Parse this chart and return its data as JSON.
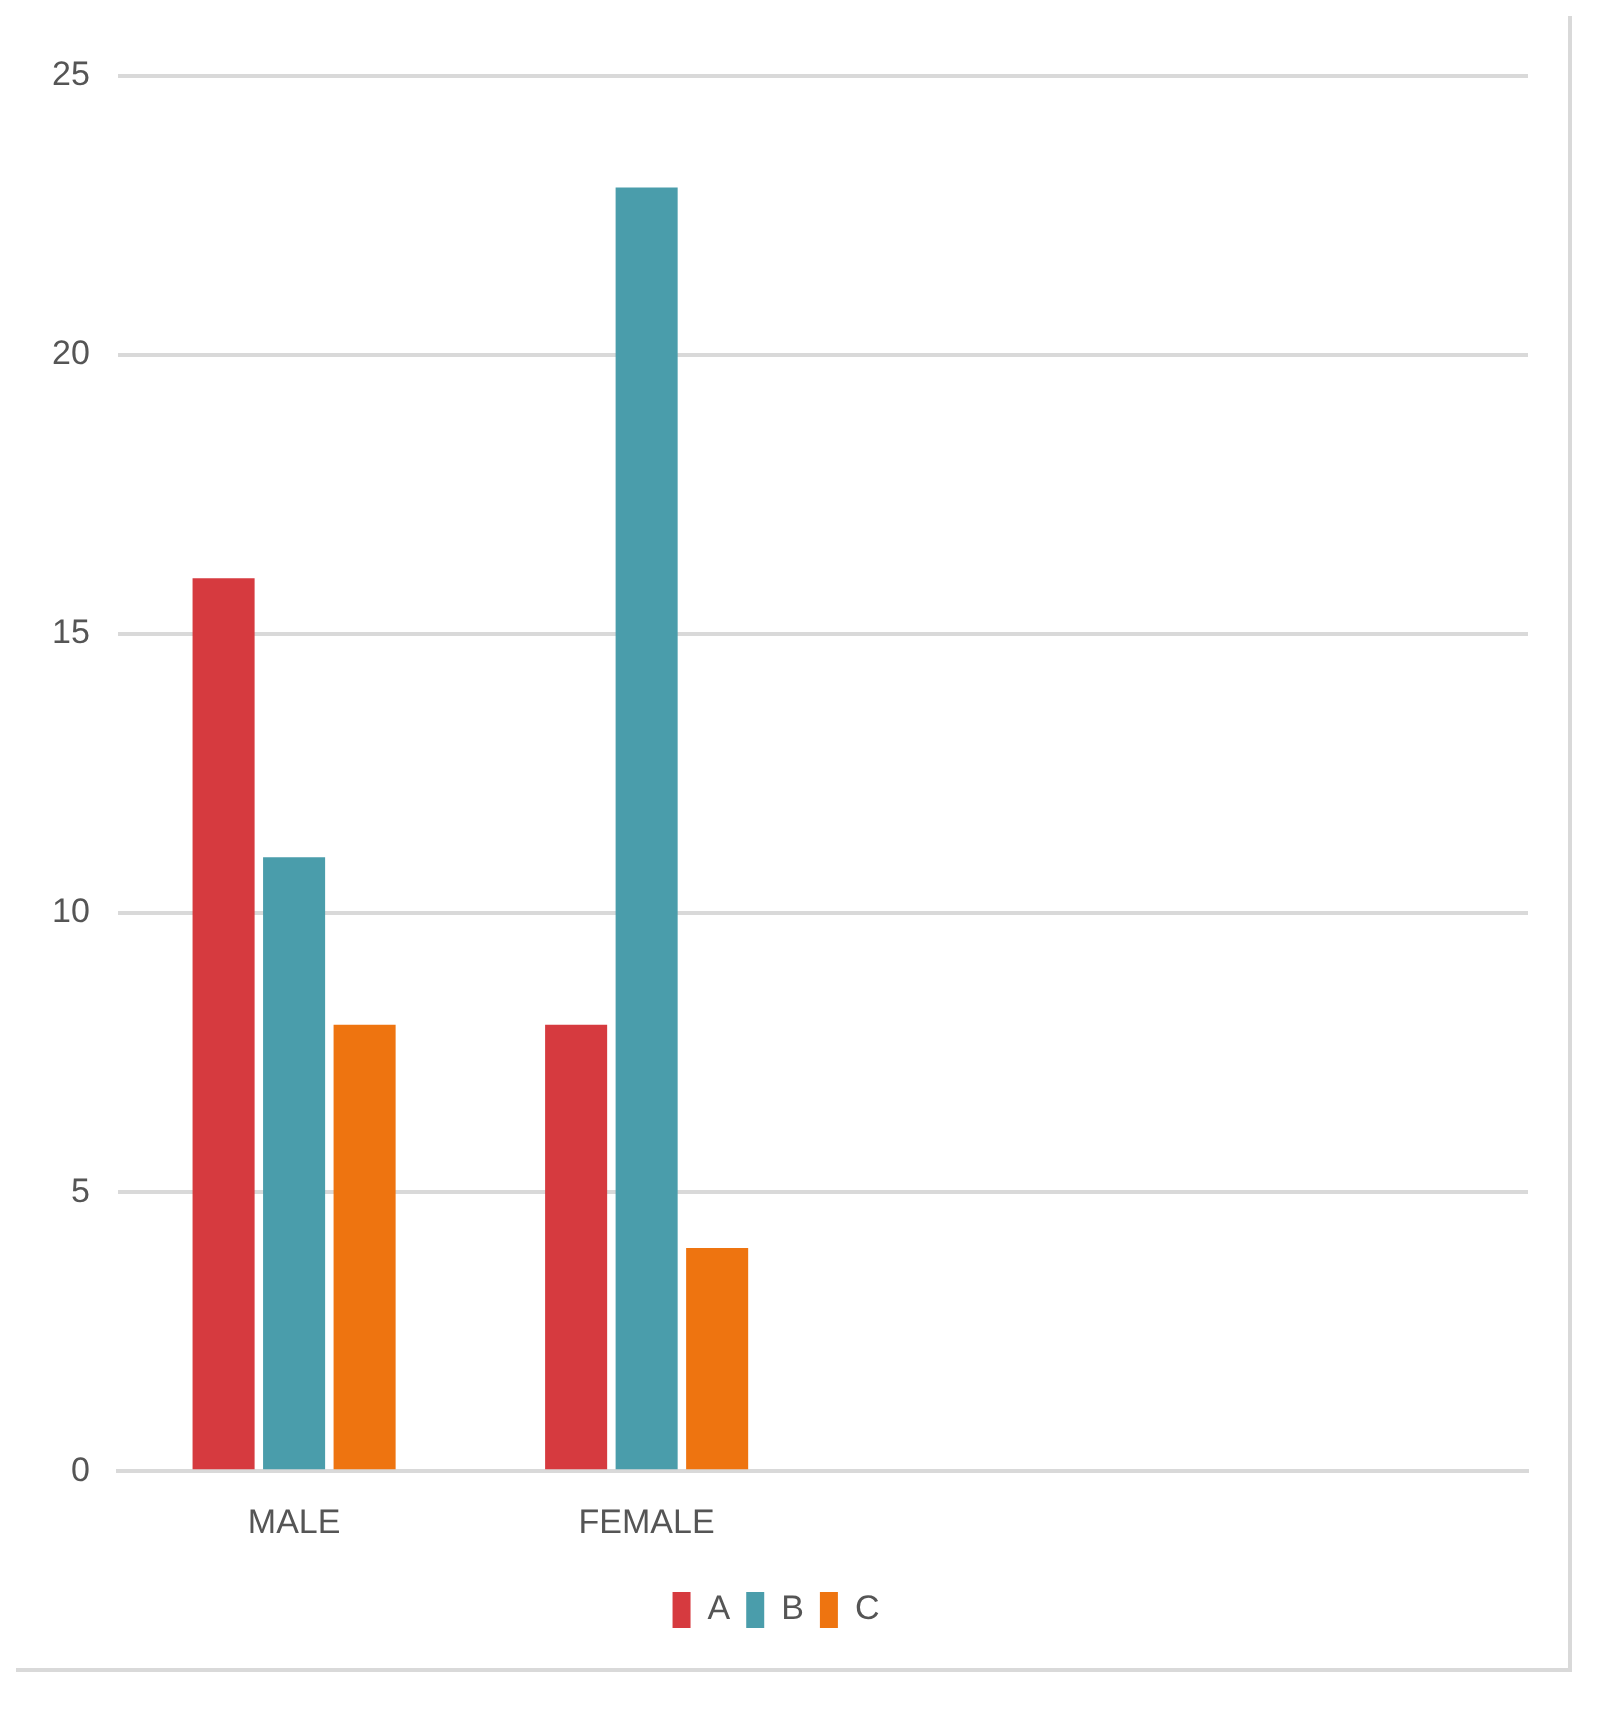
{
  "chart_data": {
    "type": "bar",
    "categories": [
      "MALE",
      "FEMALE",
      null,
      null
    ],
    "series": [
      {
        "name": "A",
        "color": "#d63a3f",
        "values": [
          16,
          8,
          null,
          null
        ]
      },
      {
        "name": "B",
        "color": "#4a9dab",
        "values": [
          11,
          23,
          null,
          null
        ]
      },
      {
        "name": "C",
        "color": "#ee7410",
        "values": [
          8,
          4,
          null,
          null
        ]
      }
    ],
    "ylim": [
      0,
      25
    ],
    "yticks": [
      0,
      5,
      10,
      15,
      20,
      25
    ],
    "grid": "y",
    "legend": "bottom"
  }
}
